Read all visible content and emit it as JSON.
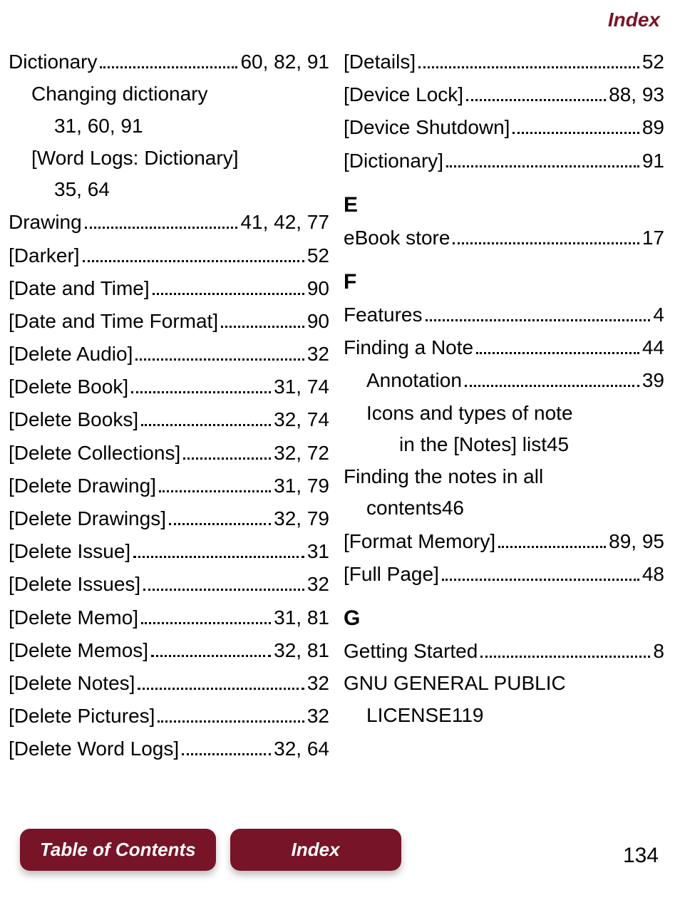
{
  "header": {
    "label": "Index",
    "color": "#781427"
  },
  "footer": {
    "button_bg": "#781427",
    "toc_label": "Table of Contents",
    "index_label": "Index",
    "page_number": "134"
  },
  "left_col": [
    {
      "type": "entry",
      "indent": 0,
      "term": "Dictionary",
      "pages": "60, 82, 91"
    },
    {
      "type": "wrap_first",
      "indent": 1,
      "text": "Changing dictionary"
    },
    {
      "type": "wrap_tail",
      "indent": "cont",
      "pages": "31, 60, 91"
    },
    {
      "type": "wrap_first",
      "indent": 1,
      "text": "[Word Logs: Dictionary]"
    },
    {
      "type": "wrap_tail",
      "indent": "cont",
      "pages": "35, 64"
    },
    {
      "type": "entry",
      "indent": 0,
      "term": "Drawing",
      "pages": "41, 42, 77"
    },
    {
      "type": "entry",
      "indent": 0,
      "term": "[Darker]",
      "pages": "52"
    },
    {
      "type": "entry",
      "indent": 0,
      "term": "[Date and Time]",
      "pages": "90"
    },
    {
      "type": "entry",
      "indent": 0,
      "term": "[Date and Time Format]",
      "pages": "90"
    },
    {
      "type": "entry",
      "indent": 0,
      "term": "[Delete Audio]",
      "pages": "32"
    },
    {
      "type": "entry",
      "indent": 0,
      "term": "[Delete Book]",
      "pages": "31, 74"
    },
    {
      "type": "entry",
      "indent": 0,
      "term": "[Delete Books]",
      "pages": "32, 74"
    },
    {
      "type": "entry",
      "indent": 0,
      "term": "[Delete Collections]",
      "pages": "32, 72"
    },
    {
      "type": "entry",
      "indent": 0,
      "term": "[Delete Drawing]",
      "pages": "31, 79"
    },
    {
      "type": "entry",
      "indent": 0,
      "term": "[Delete Drawings]",
      "pages": "32, 79"
    },
    {
      "type": "entry",
      "indent": 0,
      "term": "[Delete Issue]",
      "pages": "31"
    },
    {
      "type": "entry",
      "indent": 0,
      "term": "[Delete Issues]",
      "pages": "32"
    },
    {
      "type": "entry",
      "indent": 0,
      "term": "[Delete Memo]",
      "pages": "31, 81"
    },
    {
      "type": "entry",
      "indent": 0,
      "term": "[Delete Memos]",
      "pages": "32, 81"
    },
    {
      "type": "entry",
      "indent": 0,
      "term": "[Delete Notes]",
      "pages": "32"
    },
    {
      "type": "entry",
      "indent": 0,
      "term": "[Delete Pictures]",
      "pages": "32"
    },
    {
      "type": "entry",
      "indent": 0,
      "term": "[Delete Word Logs]",
      "pages": "32, 64"
    }
  ],
  "right_col": [
    {
      "type": "entry",
      "indent": 0,
      "term": "[Details]",
      "pages": "52"
    },
    {
      "type": "entry",
      "indent": 0,
      "term": "[Device Lock]",
      "pages": "88, 93"
    },
    {
      "type": "entry",
      "indent": 0,
      "term": "[Device Shutdown]",
      "pages": "89"
    },
    {
      "type": "entry",
      "indent": 0,
      "term": "[Dictionary]",
      "pages": "91"
    },
    {
      "type": "letter",
      "text": "E"
    },
    {
      "type": "entry",
      "indent": 0,
      "term": "eBook store",
      "pages": "17"
    },
    {
      "type": "letter",
      "text": "F"
    },
    {
      "type": "entry",
      "indent": 0,
      "term": "Features",
      "pages": "4"
    },
    {
      "type": "entry",
      "indent": 0,
      "term": "Finding a Note",
      "pages": "44"
    },
    {
      "type": "entry",
      "indent": 1,
      "term": "Annotation",
      "pages": "39"
    },
    {
      "type": "wrap_first",
      "indent": 1,
      "text": "Icons and types of note"
    },
    {
      "type": "wrap_tail_term",
      "indent": "cont-2",
      "term": "in the [Notes] list",
      "pages": "45"
    },
    {
      "type": "wrap_first",
      "indent": 0,
      "text": "Finding the notes in all"
    },
    {
      "type": "wrap_tail_term",
      "indent": "cont-1",
      "term": "contents",
      "pages": "46"
    },
    {
      "type": "entry",
      "indent": 0,
      "term": "[Format Memory]",
      "pages": "89, 95"
    },
    {
      "type": "entry",
      "indent": 0,
      "term": "[Full Page]",
      "pages": "48"
    },
    {
      "type": "letter",
      "text": "G"
    },
    {
      "type": "entry",
      "indent": 0,
      "term": "Getting Started",
      "pages": "8"
    },
    {
      "type": "wrap_first",
      "indent": 0,
      "text": "GNU GENERAL PUBLIC"
    },
    {
      "type": "wrap_tail_term",
      "indent": "cont-1",
      "term": "LICENSE",
      "pages": "119"
    }
  ]
}
